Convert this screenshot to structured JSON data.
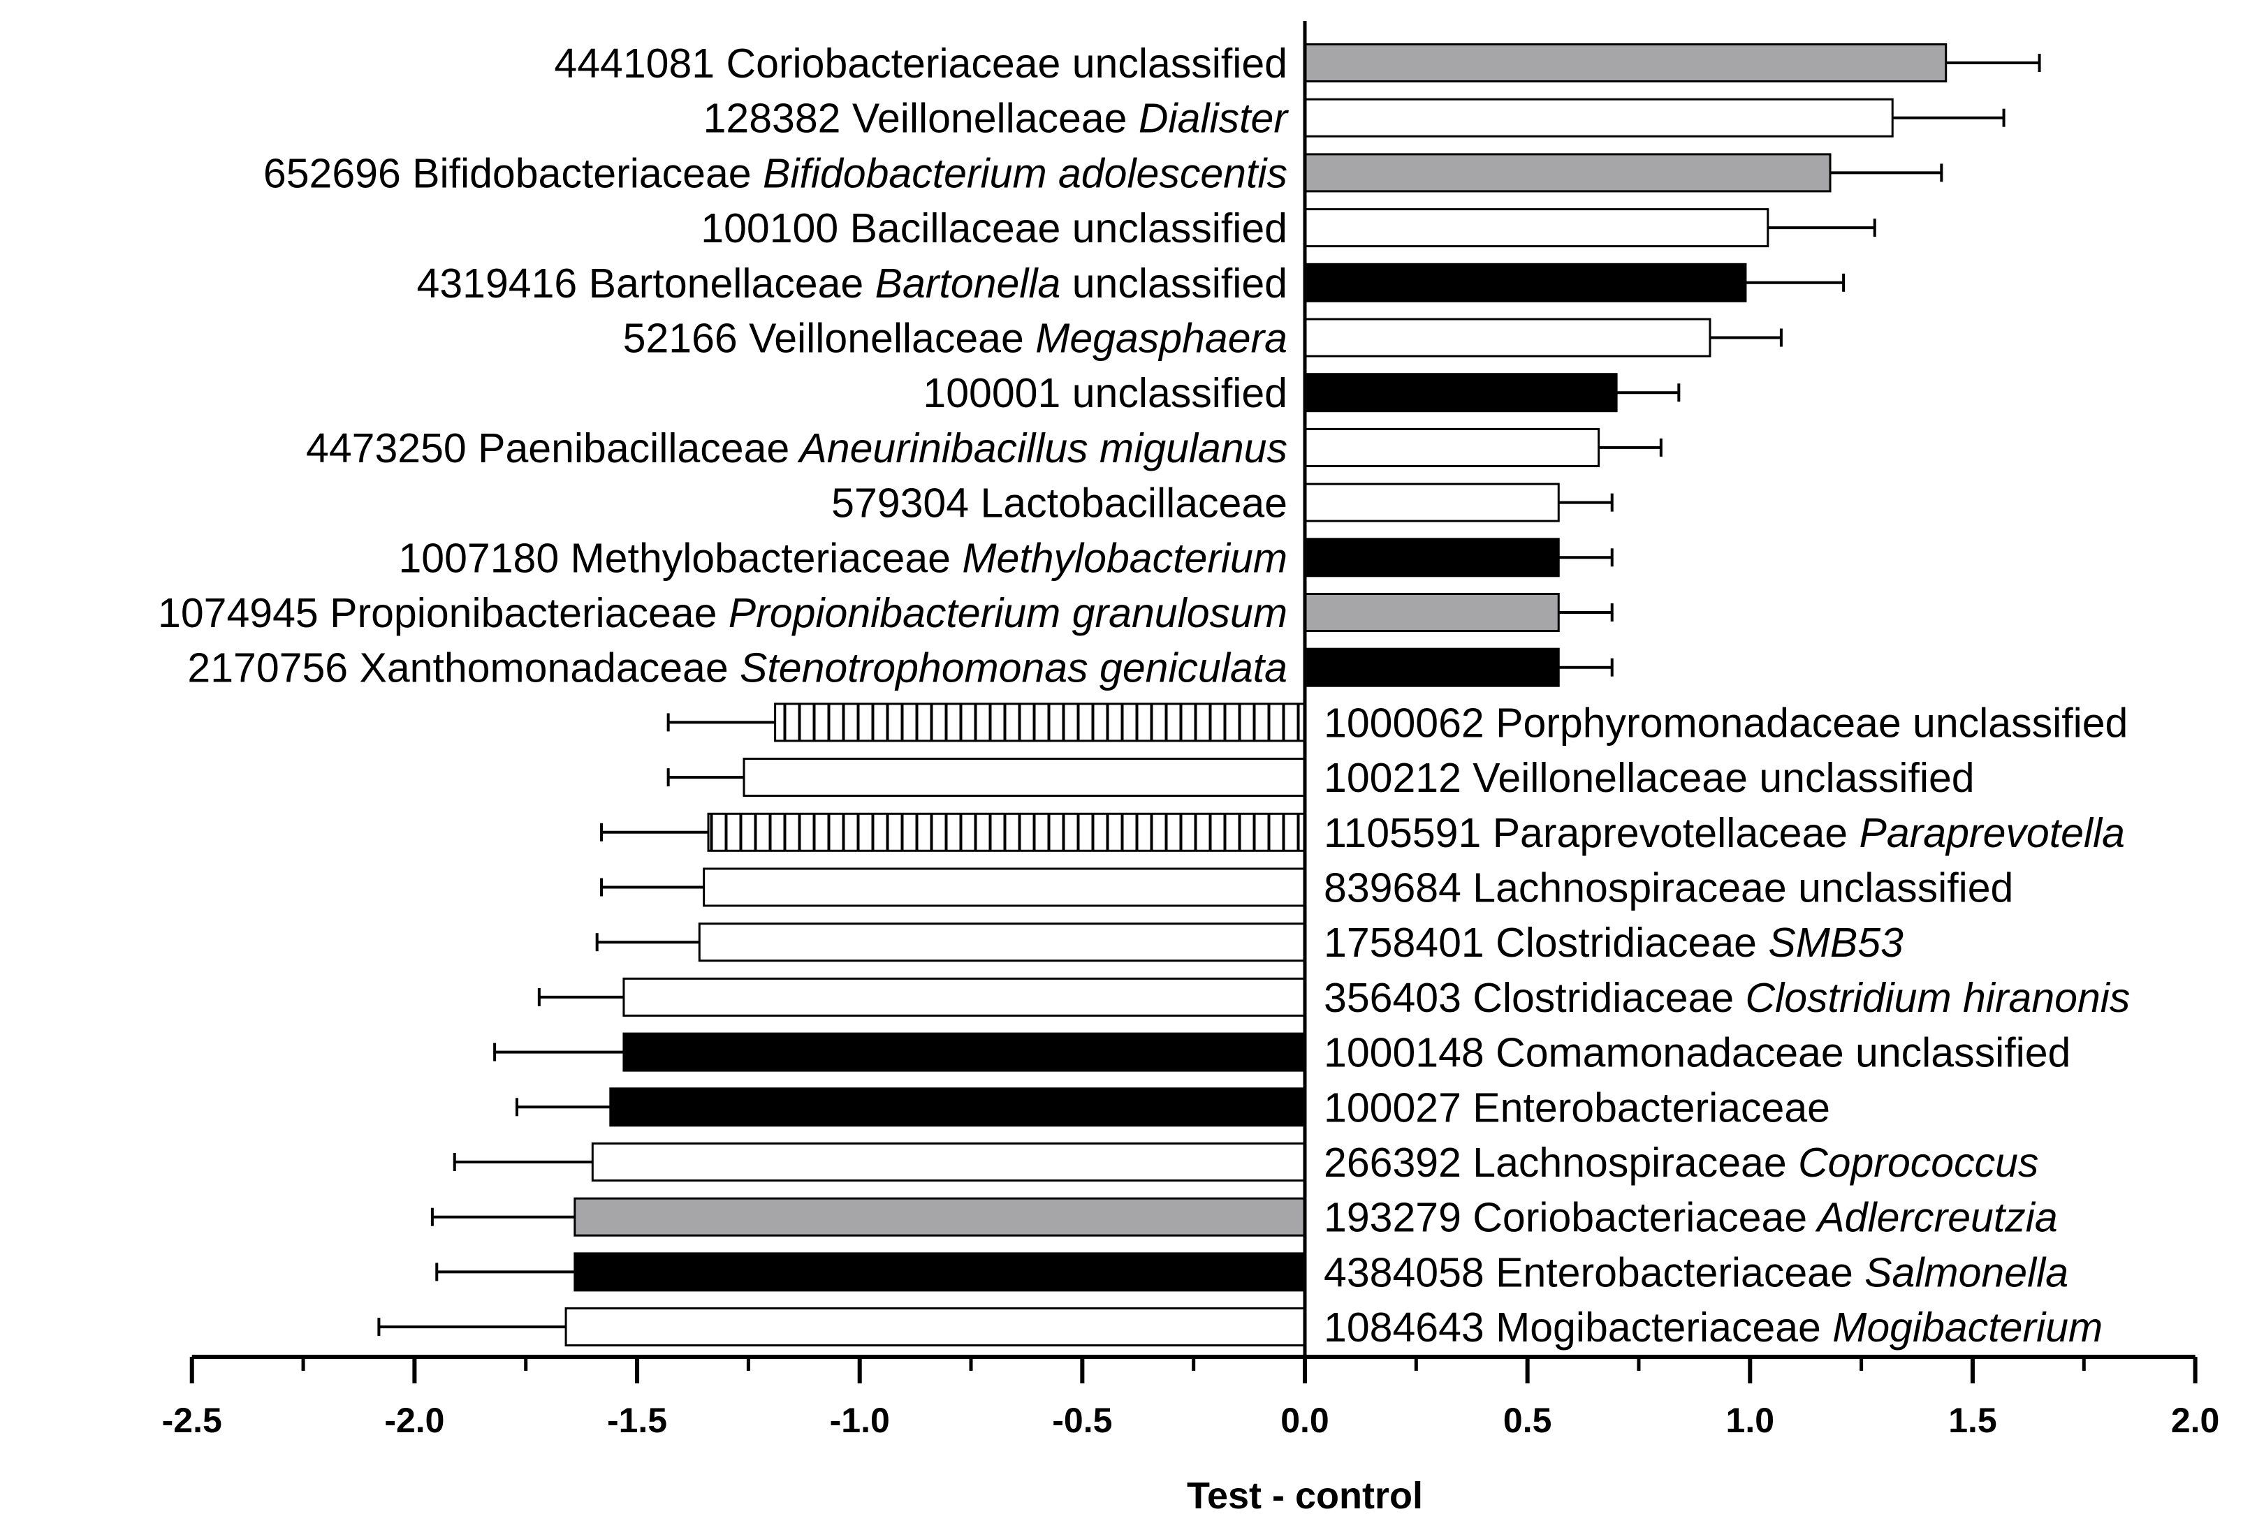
{
  "chart_data": {
    "type": "bar",
    "orientation": "horizontal",
    "xlabel": "Test - control",
    "xlim": [
      -2.5,
      2.0
    ],
    "xticks": [
      "-2.5",
      "-2.0",
      "-1.5",
      "-1.0",
      "-0.5",
      "0.0",
      "0.5",
      "1.0",
      "1.5",
      "2.0"
    ],
    "xtick_values": [
      -2.5,
      -2.0,
      -1.5,
      -1.0,
      -0.5,
      0.0,
      0.5,
      1.0,
      1.5,
      2.0
    ],
    "fill_styles": {
      "gray": "#a6a6a8",
      "white": "#ffffff",
      "black": "#000000",
      "hatched": "vertical-lines"
    },
    "bars": [
      {
        "id": "4441081",
        "family": "Coriobacteriaceae",
        "genus": "unclassified",
        "genus_italic": false,
        "value": 1.44,
        "error": 0.21,
        "fill": "gray"
      },
      {
        "id": "128382",
        "family": "Veillonellaceae",
        "genus": "Dialister",
        "genus_italic": true,
        "value": 1.32,
        "error": 0.25,
        "fill": "white"
      },
      {
        "id": "652696",
        "family": "Bifidobacteriaceae",
        "genus": "Bifidobacterium adolescentis",
        "genus_italic": true,
        "value": 1.18,
        "error": 0.25,
        "fill": "gray"
      },
      {
        "id": "100100",
        "family": "Bacillaceae",
        "genus": "unclassified",
        "genus_italic": false,
        "value": 1.04,
        "error": 0.24,
        "fill": "white"
      },
      {
        "id": "4319416",
        "family": "Bartonellaceae",
        "genus": "Bartonella",
        "genus_italic": true,
        "suffix": "unclassified",
        "value": 0.99,
        "error": 0.22,
        "fill": "black"
      },
      {
        "id": "52166",
        "family": "Veillonellaceae",
        "genus": "Megasphaera",
        "genus_italic": true,
        "value": 0.91,
        "error": 0.16,
        "fill": "white"
      },
      {
        "id": "100001",
        "family": "",
        "genus": "unclassified",
        "genus_italic": false,
        "value": 0.7,
        "error": 0.14,
        "fill": "black"
      },
      {
        "id": "4473250",
        "family": "Paenibacillaceae",
        "genus": "Aneurinibacillus migulanus",
        "genus_italic": true,
        "value": 0.66,
        "error": 0.14,
        "fill": "white"
      },
      {
        "id": "579304",
        "family": "Lactobacillaceae",
        "genus": "",
        "genus_italic": false,
        "value": 0.57,
        "error": 0.12,
        "fill": "white"
      },
      {
        "id": "1007180",
        "family": "Methylobacteriaceae",
        "genus": "Methylobacterium",
        "genus_italic": true,
        "value": 0.57,
        "error": 0.12,
        "fill": "black"
      },
      {
        "id": "1074945",
        "family": "Propionibacteriaceae",
        "genus": "Propionibacterium granulosum",
        "genus_italic": true,
        "value": 0.57,
        "error": 0.12,
        "fill": "gray"
      },
      {
        "id": "2170756",
        "family": "Xanthomonadaceae",
        "genus": "Stenotrophomonas geniculata",
        "genus_italic": true,
        "value": 0.57,
        "error": 0.12,
        "fill": "black"
      },
      {
        "id": "1000062",
        "family": "Porphyromonadaceae",
        "genus": "unclassified",
        "genus_italic": false,
        "value": -1.19,
        "error": 0.24,
        "fill": "hatched"
      },
      {
        "id": "100212",
        "family": "Veillonellaceae",
        "genus": "unclassified",
        "genus_italic": false,
        "value": -1.26,
        "error": 0.17,
        "fill": "white"
      },
      {
        "id": "1105591",
        "family": "Paraprevotellaceae",
        "genus": "Paraprevotella",
        "genus_italic": true,
        "value": -1.34,
        "error": 0.24,
        "fill": "hatched"
      },
      {
        "id": "839684",
        "family": "Lachnospiraceae",
        "genus": "unclassified",
        "genus_italic": false,
        "value": -1.35,
        "error": 0.23,
        "fill": "white"
      },
      {
        "id": "1758401",
        "family": "Clostridiaceae",
        "genus": "SMB53",
        "genus_italic": true,
        "value": -1.36,
        "error": 0.23,
        "fill": "white"
      },
      {
        "id": "356403",
        "family": "Clostridiaceae",
        "genus": "Clostridium hiranonis",
        "genus_italic": true,
        "value": -1.53,
        "error": 0.19,
        "fill": "white"
      },
      {
        "id": "1000148",
        "family": "Comamonadaceae",
        "genus": "unclassified",
        "genus_italic": false,
        "value": -1.53,
        "error": 0.29,
        "fill": "black"
      },
      {
        "id": "100027",
        "family": "Enterobacteriaceae",
        "genus": "",
        "genus_italic": false,
        "value": -1.56,
        "error": 0.21,
        "fill": "black"
      },
      {
        "id": "266392",
        "family": "Lachnospiraceae",
        "genus": "Coprococcus",
        "genus_italic": true,
        "value": -1.6,
        "error": 0.31,
        "fill": "white"
      },
      {
        "id": "193279",
        "family": "Coriobacteriaceae",
        "genus": "Adlercreutzia",
        "genus_italic": true,
        "value": -1.64,
        "error": 0.32,
        "fill": "gray"
      },
      {
        "id": "4384058",
        "family": "Enterobacteriaceae",
        "genus": "Salmonella",
        "genus_italic": true,
        "value": -1.64,
        "error": 0.31,
        "fill": "black"
      },
      {
        "id": "1084643",
        "family": "Mogibacteriaceae",
        "genus": "Mogibacterium",
        "genus_italic": true,
        "value": -1.66,
        "error": 0.42,
        "fill": "white"
      }
    ]
  }
}
